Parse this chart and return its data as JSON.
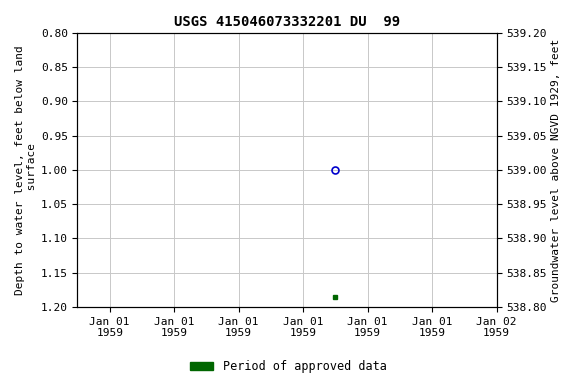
{
  "title": "USGS 415046073332201 DU  99",
  "ylabel_left": "Depth to water level, feet below land\n surface",
  "ylabel_right": "Groundwater level above NGVD 1929, feet",
  "ylim_left": [
    0.8,
    1.2
  ],
  "ylim_right": [
    538.8,
    539.2
  ],
  "left_yticks": [
    0.8,
    0.85,
    0.9,
    0.95,
    1.0,
    1.05,
    1.1,
    1.15,
    1.2
  ],
  "right_yticks": [
    539.2,
    539.15,
    539.1,
    539.05,
    539.0,
    538.95,
    538.9,
    538.85,
    538.8
  ],
  "data_point_x": 3.5,
  "data_point_y": 1.0,
  "data_point2_x": 3.5,
  "data_point2_y": 1.185,
  "bg_color": "#ffffff",
  "grid_color": "#c8c8c8",
  "point_color_open": "#0000cc",
  "point_color_filled": "#006600",
  "legend_label": "Period of approved data",
  "legend_color": "#006600",
  "title_fontsize": 10,
  "axis_label_fontsize": 8,
  "tick_fontsize": 8,
  "xtick_labels": [
    "Jan 01\n1959",
    "Jan 01\n1959",
    "Jan 01\n1959",
    "Jan 01\n1959",
    "Jan 01\n1959",
    "Jan 01\n1959",
    "Jan 02\n1959"
  ],
  "xlim": [
    0,
    6
  ]
}
